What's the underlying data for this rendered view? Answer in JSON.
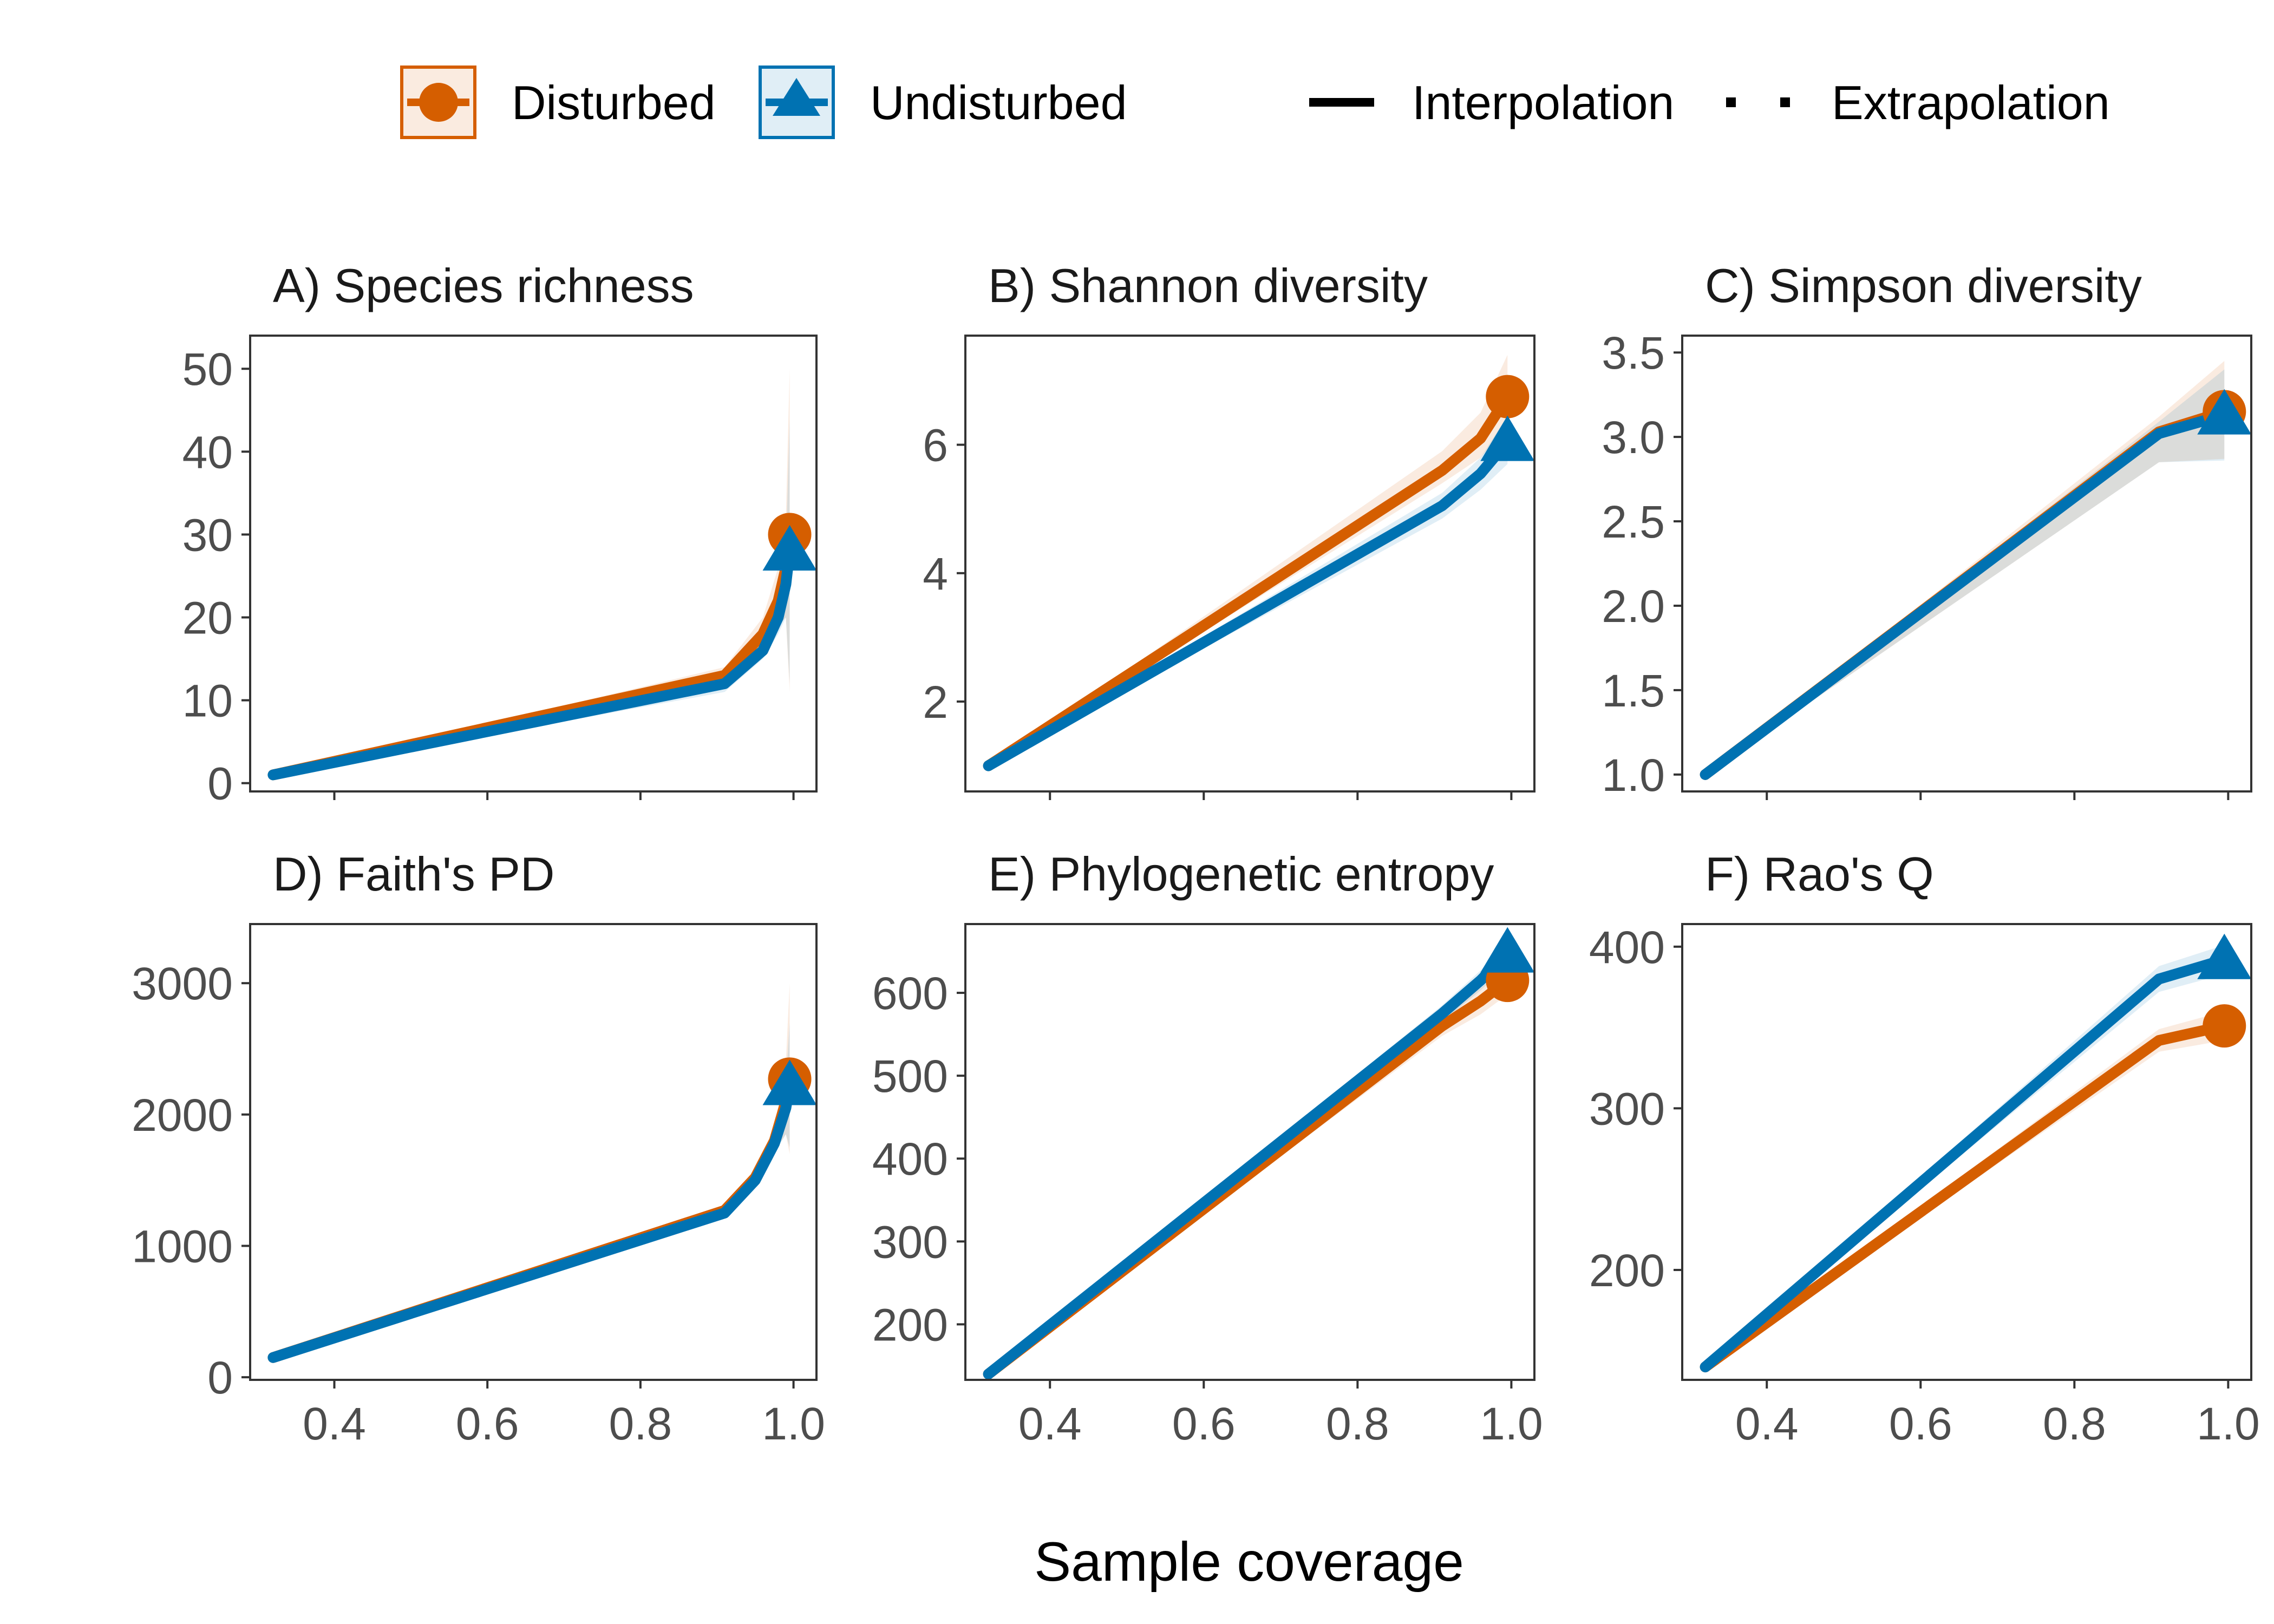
{
  "legend": {
    "groups": [
      {
        "name": "Disturbed",
        "color": "#D55E00",
        "marker": "circle"
      },
      {
        "name": "Undisturbed",
        "color": "#0072B2",
        "marker": "triangle"
      }
    ],
    "methods": [
      {
        "name": "Interpolation",
        "style": "solid"
      },
      {
        "name": "Extrapolation",
        "style": "dotted"
      }
    ]
  },
  "xlabel": "Sample coverage",
  "chart_data": [
    {
      "type": "line",
      "title": "A) Species richness",
      "xlim": [
        0.29,
        1.03
      ],
      "ylim": [
        -1,
        54
      ],
      "xticks": [
        0.4,
        0.6,
        0.8,
        1.0
      ],
      "show_xticks": false,
      "yticks": [
        0,
        10,
        20,
        30,
        40,
        50
      ],
      "series": [
        {
          "name": "Disturbed",
          "x": [
            0.32,
            0.91,
            0.96,
            0.98,
            0.99,
            0.995
          ],
          "y": [
            1,
            13,
            18,
            22,
            26,
            30
          ],
          "ci_low": [
            1,
            12,
            16,
            19,
            20,
            11
          ],
          "ci_high": [
            1,
            14,
            20,
            26,
            32,
            50
          ]
        },
        {
          "name": "Undisturbed",
          "x": [
            0.32,
            0.91,
            0.96,
            0.98,
            0.99,
            0.995
          ],
          "y": [
            1,
            12,
            16,
            20,
            24,
            28
          ],
          "ci_low": [
            1,
            11,
            15,
            18,
            20,
            12
          ],
          "ci_high": [
            1,
            13,
            17,
            22,
            28,
            44
          ]
        }
      ]
    },
    {
      "type": "line",
      "title": "B) Shannon diversity",
      "xlim": [
        0.29,
        1.03
      ],
      "ylim": [
        0.6,
        7.7
      ],
      "xticks": [
        0.4,
        0.6,
        0.8,
        1.0
      ],
      "show_xticks": false,
      "yticks": [
        2,
        4,
        6
      ],
      "series": [
        {
          "name": "Disturbed",
          "x": [
            0.32,
            0.91,
            0.96,
            0.995
          ],
          "y": [
            1.0,
            5.6,
            6.1,
            6.75
          ],
          "ci_low": [
            1.0,
            5.4,
            5.8,
            6.3
          ],
          "ci_high": [
            1.0,
            5.9,
            6.5,
            7.4
          ]
        },
        {
          "name": "Undisturbed",
          "x": [
            0.32,
            0.91,
            0.96,
            0.995
          ],
          "y": [
            1.0,
            5.05,
            5.55,
            6.05
          ],
          "ci_low": [
            1.0,
            4.85,
            5.3,
            5.7
          ],
          "ci_high": [
            1.0,
            5.25,
            5.8,
            6.45
          ]
        }
      ]
    },
    {
      "type": "line",
      "title": "C) Simpson diversity",
      "xlim": [
        0.29,
        1.03
      ],
      "ylim": [
        0.9,
        3.6
      ],
      "xticks": [
        0.4,
        0.6,
        0.8,
        1.0
      ],
      "show_xticks": false,
      "yticks": [
        1.0,
        1.5,
        2.0,
        2.5,
        3.0,
        3.5
      ],
      "series": [
        {
          "name": "Disturbed",
          "x": [
            0.32,
            0.91,
            0.995
          ],
          "y": [
            1.0,
            3.03,
            3.15
          ],
          "ci_low": [
            1.0,
            2.85,
            2.87
          ],
          "ci_high": [
            1.0,
            3.12,
            3.45
          ]
        },
        {
          "name": "Undisturbed",
          "x": [
            0.32,
            0.91,
            0.995
          ],
          "y": [
            1.0,
            3.02,
            3.13
          ],
          "ci_low": [
            1.0,
            2.85,
            2.86
          ],
          "ci_high": [
            1.0,
            3.09,
            3.4
          ]
        }
      ]
    },
    {
      "type": "line",
      "title": "D) Faith's PD",
      "xlim": [
        0.29,
        1.03
      ],
      "ylim": [
        -20,
        3450
      ],
      "xticks": [
        0.4,
        0.6,
        0.8,
        1.0
      ],
      "show_xticks": true,
      "yticks": [
        0,
        1000,
        2000,
        3000
      ],
      "series": [
        {
          "name": "Disturbed",
          "x": [
            0.32,
            0.91,
            0.95,
            0.975,
            0.99,
            0.995
          ],
          "y": [
            150,
            1270,
            1520,
            1800,
            2100,
            2270
          ],
          "ci_low": [
            150,
            1240,
            1480,
            1720,
            1850,
            1700
          ],
          "ci_high": [
            150,
            1300,
            1570,
            1900,
            2400,
            3000
          ]
        },
        {
          "name": "Undisturbed",
          "x": [
            0.32,
            0.91,
            0.95,
            0.975,
            0.99,
            0.995
          ],
          "y": [
            150,
            1250,
            1500,
            1780,
            2050,
            2220
          ],
          "ci_low": [
            150,
            1220,
            1460,
            1700,
            1850,
            1750
          ],
          "ci_high": [
            150,
            1280,
            1540,
            1860,
            2250,
            2700
          ]
        }
      ]
    },
    {
      "type": "line",
      "title": "E) Phylogenetic entropy",
      "xlim": [
        0.29,
        1.03
      ],
      "ylim": [
        133,
        683
      ],
      "xticks": [
        0.4,
        0.6,
        0.8,
        1.0
      ],
      "show_xticks": true,
      "yticks": [
        200,
        300,
        400,
        500,
        600
      ],
      "series": [
        {
          "name": "Disturbed",
          "x": [
            0.32,
            0.91,
            0.96,
            0.995
          ],
          "y": [
            140,
            560,
            590,
            615
          ],
          "ci_low": [
            140,
            548,
            574,
            598
          ],
          "ci_high": [
            140,
            572,
            606,
            632
          ]
        },
        {
          "name": "Undisturbed",
          "x": [
            0.32,
            0.91,
            0.96,
            0.995
          ],
          "y": [
            140,
            575,
            615,
            648
          ],
          "ci_low": [
            140,
            565,
            603,
            633
          ],
          "ci_high": [
            140,
            585,
            627,
            663
          ]
        }
      ]
    },
    {
      "type": "line",
      "title": "F) Rao's Q",
      "xlim": [
        0.29,
        1.03
      ],
      "ylim": [
        132,
        414
      ],
      "xticks": [
        0.4,
        0.6,
        0.8,
        1.0
      ],
      "show_xticks": true,
      "yticks": [
        200,
        300,
        400
      ],
      "series": [
        {
          "name": "Disturbed",
          "x": [
            0.32,
            0.91,
            0.995
          ],
          "y": [
            140,
            342,
            351
          ],
          "ci_low": [
            140,
            335,
            342
          ],
          "ci_high": [
            140,
            349,
            360
          ]
        },
        {
          "name": "Undisturbed",
          "x": [
            0.32,
            0.91,
            0.995
          ],
          "y": [
            140,
            380,
            392
          ],
          "ci_low": [
            140,
            372,
            383
          ],
          "ci_high": [
            140,
            388,
            401
          ]
        }
      ]
    }
  ]
}
